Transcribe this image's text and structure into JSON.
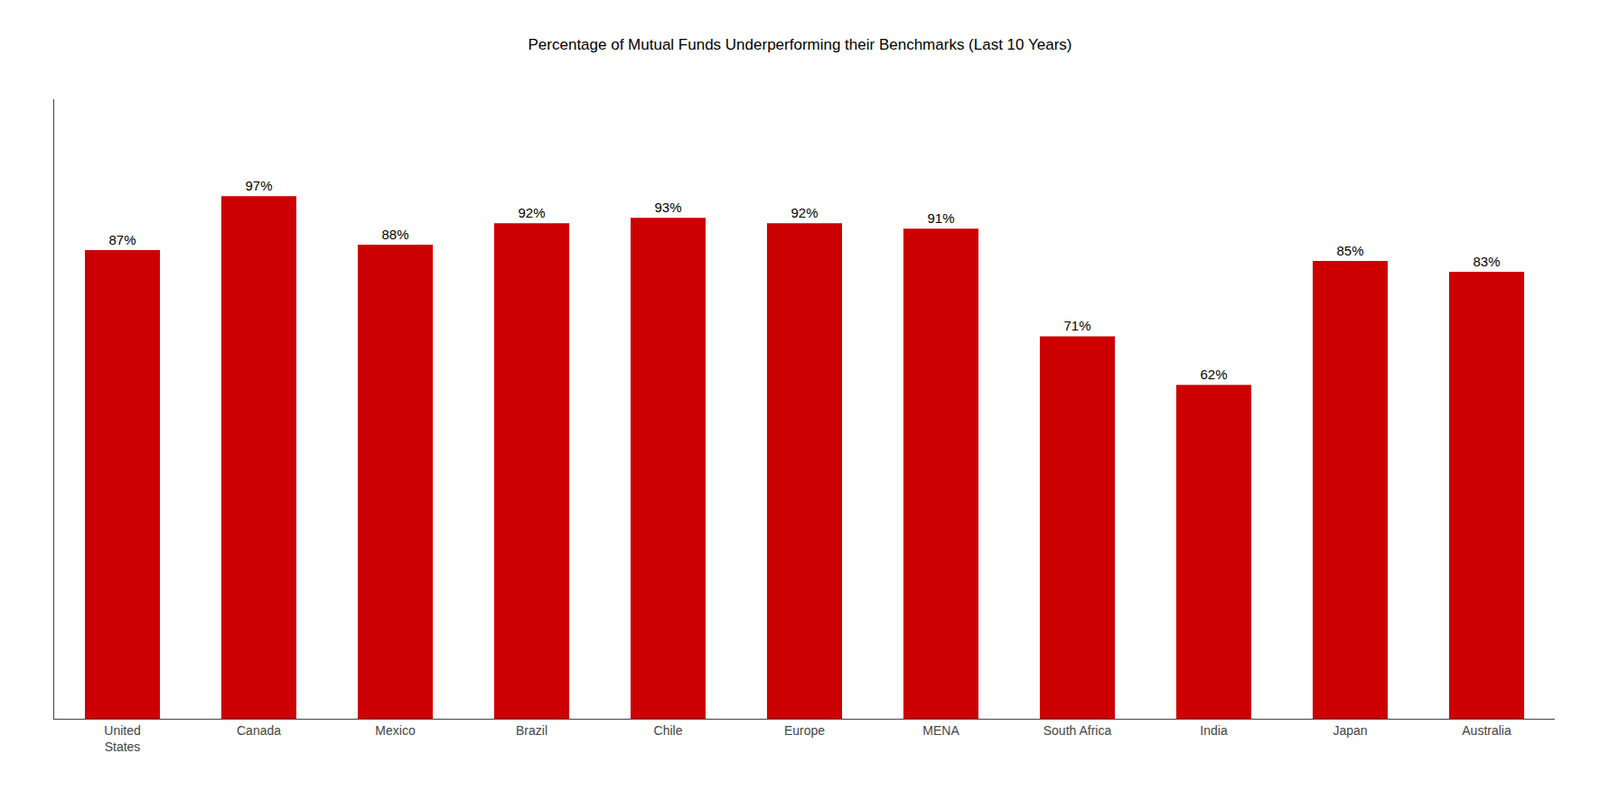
{
  "chart_data": {
    "type": "bar",
    "title": "Percentage of Mutual Funds Underperforming their Benchmarks (Last 10 Years)",
    "categories": [
      "United\nStates",
      "Canada",
      "Mexico",
      "Brazil",
      "Chile",
      "Europe",
      "MENA",
      "South Africa",
      "India",
      "Japan",
      "Australia"
    ],
    "values": [
      87,
      97,
      88,
      92,
      93,
      92,
      91,
      71,
      62,
      85,
      83
    ],
    "value_labels": [
      "87%",
      "97%",
      "88%",
      "92%",
      "93%",
      "92%",
      "91%",
      "71%",
      "62%",
      "85%",
      "83%"
    ],
    "color": "#cc0000",
    "ylim": [
      0,
      115
    ],
    "grid": false,
    "data_labels": true,
    "tick_labels": "x"
  }
}
